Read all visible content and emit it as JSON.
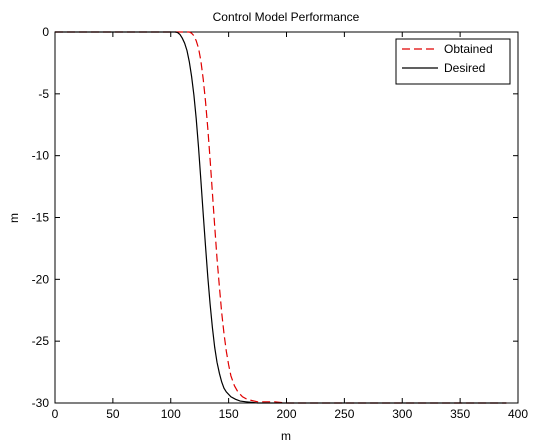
{
  "chart_data": {
    "type": "line",
    "title": "Control Model Performance",
    "xlabel": "m",
    "ylabel": "m",
    "xlim": [
      0,
      400
    ],
    "ylim": [
      -30,
      0
    ],
    "xticks": [
      0,
      50,
      100,
      150,
      200,
      250,
      300,
      350,
      400
    ],
    "yticks": [
      0,
      -5,
      -10,
      -15,
      -20,
      -25,
      -30
    ],
    "grid": false,
    "legend_position": "top-right",
    "series": [
      {
        "name": "Obtained",
        "color": "#e00000",
        "style": "dashed",
        "x": [
          0,
          100,
          108,
          112,
          116,
          118,
          120,
          122,
          124,
          126,
          128,
          130,
          132,
          134,
          136,
          138,
          140,
          142,
          144,
          146,
          148,
          150,
          152,
          155,
          158,
          162,
          166,
          170,
          175,
          180,
          190,
          200,
          250,
          300,
          350,
          390
        ],
        "y": [
          0,
          0,
          0,
          0,
          0,
          -0.1,
          -0.3,
          -0.7,
          -1.3,
          -2.3,
          -3.8,
          -5.6,
          -7.8,
          -10.3,
          -13.0,
          -15.7,
          -18.3,
          -20.6,
          -22.7,
          -24.4,
          -25.8,
          -26.9,
          -27.8,
          -28.6,
          -29.1,
          -29.5,
          -29.7,
          -29.8,
          -29.9,
          -29.9,
          -29.9,
          -30,
          -30,
          -30,
          -30,
          -30
        ]
      },
      {
        "name": "Desired",
        "color": "#000000",
        "style": "solid",
        "x": [
          0,
          100,
          104,
          106,
          108,
          110,
          112,
          114,
          116,
          118,
          120,
          122,
          124,
          126,
          128,
          130,
          132,
          134,
          136,
          138,
          140,
          142,
          144,
          146,
          148,
          152,
          156,
          160,
          165,
          170,
          175,
          180,
          200,
          250,
          300,
          350,
          390
        ],
        "y": [
          0,
          0,
          0,
          -0.05,
          -0.2,
          -0.5,
          -0.9,
          -1.5,
          -2.4,
          -3.6,
          -5.1,
          -7.0,
          -9.3,
          -11.9,
          -14.7,
          -17.3,
          -19.8,
          -22.0,
          -23.9,
          -25.5,
          -26.7,
          -27.6,
          -28.3,
          -28.8,
          -29.1,
          -29.5,
          -29.7,
          -29.85,
          -29.9,
          -29.95,
          -30,
          -30,
          -30,
          -30,
          -30,
          -30,
          -30
        ]
      }
    ]
  }
}
